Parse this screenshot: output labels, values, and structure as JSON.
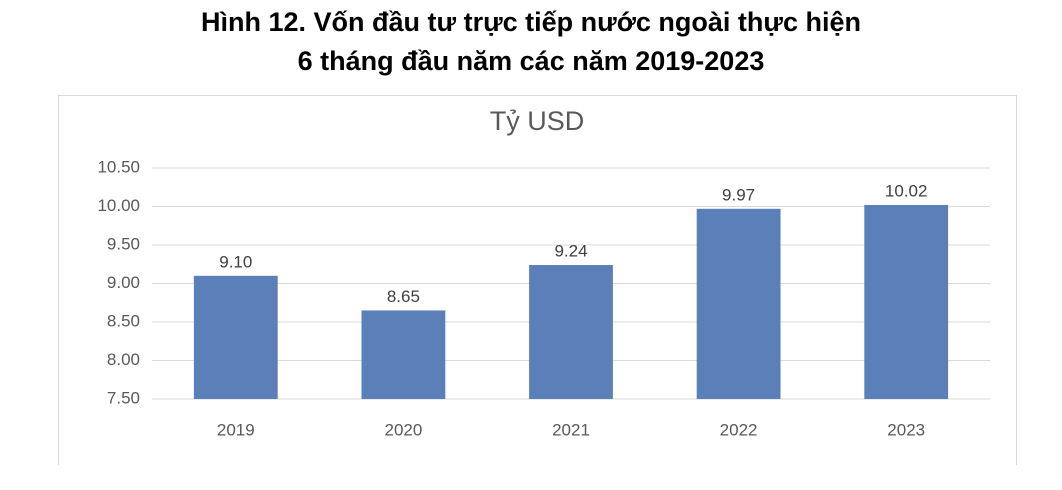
{
  "chart_data": {
    "type": "bar",
    "title": [
      "Hình 12. Vốn đầu tư trực tiếp nước ngoài thực hiện",
      "6 tháng đầu năm các năm 2019-2023"
    ],
    "subtitle": "Tỷ USD",
    "categories": [
      "2019",
      "2020",
      "2021",
      "2022",
      "2023"
    ],
    "values": [
      9.1,
      8.65,
      9.24,
      9.97,
      10.02
    ],
    "value_labels": [
      "9.10",
      "8.65",
      "9.24",
      "9.97",
      "10.02"
    ],
    "color": "#5b7fb9",
    "ylim": [
      7.5,
      10.5
    ],
    "yticks": [
      {
        "value": 7.5,
        "label": "7.50"
      },
      {
        "value": 8,
        "label": "8.00"
      },
      {
        "value": 8.5,
        "label": "8.50"
      },
      {
        "value": 9,
        "label": "9.00"
      },
      {
        "value": 9.5,
        "label": "9.50"
      },
      {
        "value": 10,
        "label": "10.00"
      },
      {
        "value": 10.5,
        "label": "10.50"
      }
    ],
    "grid": true
  }
}
